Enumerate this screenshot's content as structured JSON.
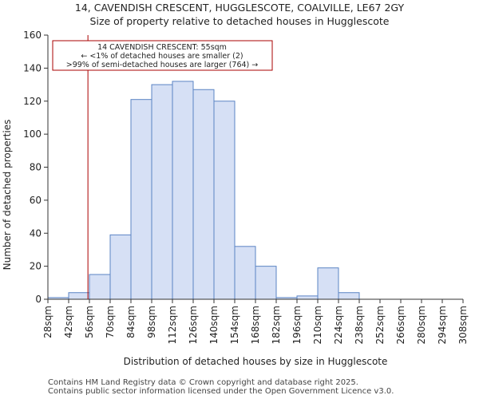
{
  "title_line1": "14, CAVENDISH CRESCENT, HUGGLESCOTE, COALVILLE, LE67 2GY",
  "title_line2": "Size of property relative to detached houses in Hugglescote",
  "footer_line1": "Contains HM Land Registry data © Crown copyright and database right 2025.",
  "footer_line2": "Contains public sector information licensed under the Open Government Licence v3.0.",
  "colors": {
    "bar_fill": "#d6e0f5",
    "bar_stroke": "#5b84c4",
    "marker": "#aa0000",
    "axis": "#333333"
  },
  "annotation": {
    "line1": "14 CAVENDISH CRESCENT: 55sqm",
    "line2": "← <1% of detached houses are smaller (2)",
    "line3": ">99% of semi-detached houses are larger (764) →"
  },
  "chart_data": {
    "type": "bar",
    "title": "Size of property relative to detached houses in Hugglescote",
    "xlabel": "Distribution of detached houses by size in Hugglescote",
    "ylabel": "Number of detached properties",
    "bin_edges": [
      28,
      42,
      56,
      70,
      84,
      98,
      112,
      126,
      140,
      154,
      168,
      182,
      196,
      210,
      224,
      238,
      252,
      266,
      280,
      294,
      308
    ],
    "tick_labels": [
      "28sqm",
      "42sqm",
      "56sqm",
      "70sqm",
      "84sqm",
      "98sqm",
      "112sqm",
      "126sqm",
      "140sqm",
      "154sqm",
      "168sqm",
      "182sqm",
      "196sqm",
      "210sqm",
      "224sqm",
      "238sqm",
      "252sqm",
      "266sqm",
      "280sqm",
      "294sqm",
      "308sqm"
    ],
    "values": [
      1,
      4,
      15,
      39,
      121,
      130,
      132,
      127,
      120,
      32,
      20,
      1,
      2,
      19,
      4,
      0,
      0,
      0,
      0,
      0
    ],
    "ylim": [
      0,
      160
    ],
    "yticks": [
      0,
      20,
      40,
      60,
      80,
      100,
      120,
      140,
      160
    ],
    "marker_value": 55,
    "grid": false
  }
}
